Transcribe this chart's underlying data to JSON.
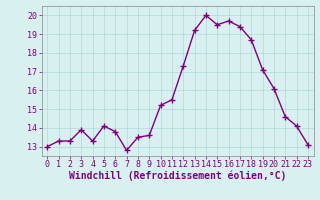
{
  "x": [
    0,
    1,
    2,
    3,
    4,
    5,
    6,
    7,
    8,
    9,
    10,
    11,
    12,
    13,
    14,
    15,
    16,
    17,
    18,
    19,
    20,
    21,
    22,
    23
  ],
  "y": [
    13.0,
    13.3,
    13.3,
    13.9,
    13.3,
    14.1,
    13.8,
    12.8,
    13.5,
    13.6,
    15.2,
    15.5,
    17.3,
    19.2,
    20.0,
    19.5,
    19.7,
    19.4,
    18.7,
    17.1,
    16.1,
    14.6,
    14.1,
    13.1
  ],
  "line_color": "#800080",
  "marker": "+",
  "markersize": 4,
  "linewidth": 1.0,
  "background_color": "#d8f0f0",
  "grid_color": "#b0d8d8",
  "xlabel": "Windchill (Refroidissement éolien,°C)",
  "xlim": [
    -0.5,
    23.5
  ],
  "ylim": [
    12.5,
    20.5
  ],
  "yticks": [
    13,
    14,
    15,
    16,
    17,
    18,
    19,
    20
  ],
  "xticks": [
    0,
    1,
    2,
    3,
    4,
    5,
    6,
    7,
    8,
    9,
    10,
    11,
    12,
    13,
    14,
    15,
    16,
    17,
    18,
    19,
    20,
    21,
    22,
    23
  ],
  "tick_fontsize": 6.0,
  "xlabel_fontsize": 7.0,
  "text_color": "#800080"
}
